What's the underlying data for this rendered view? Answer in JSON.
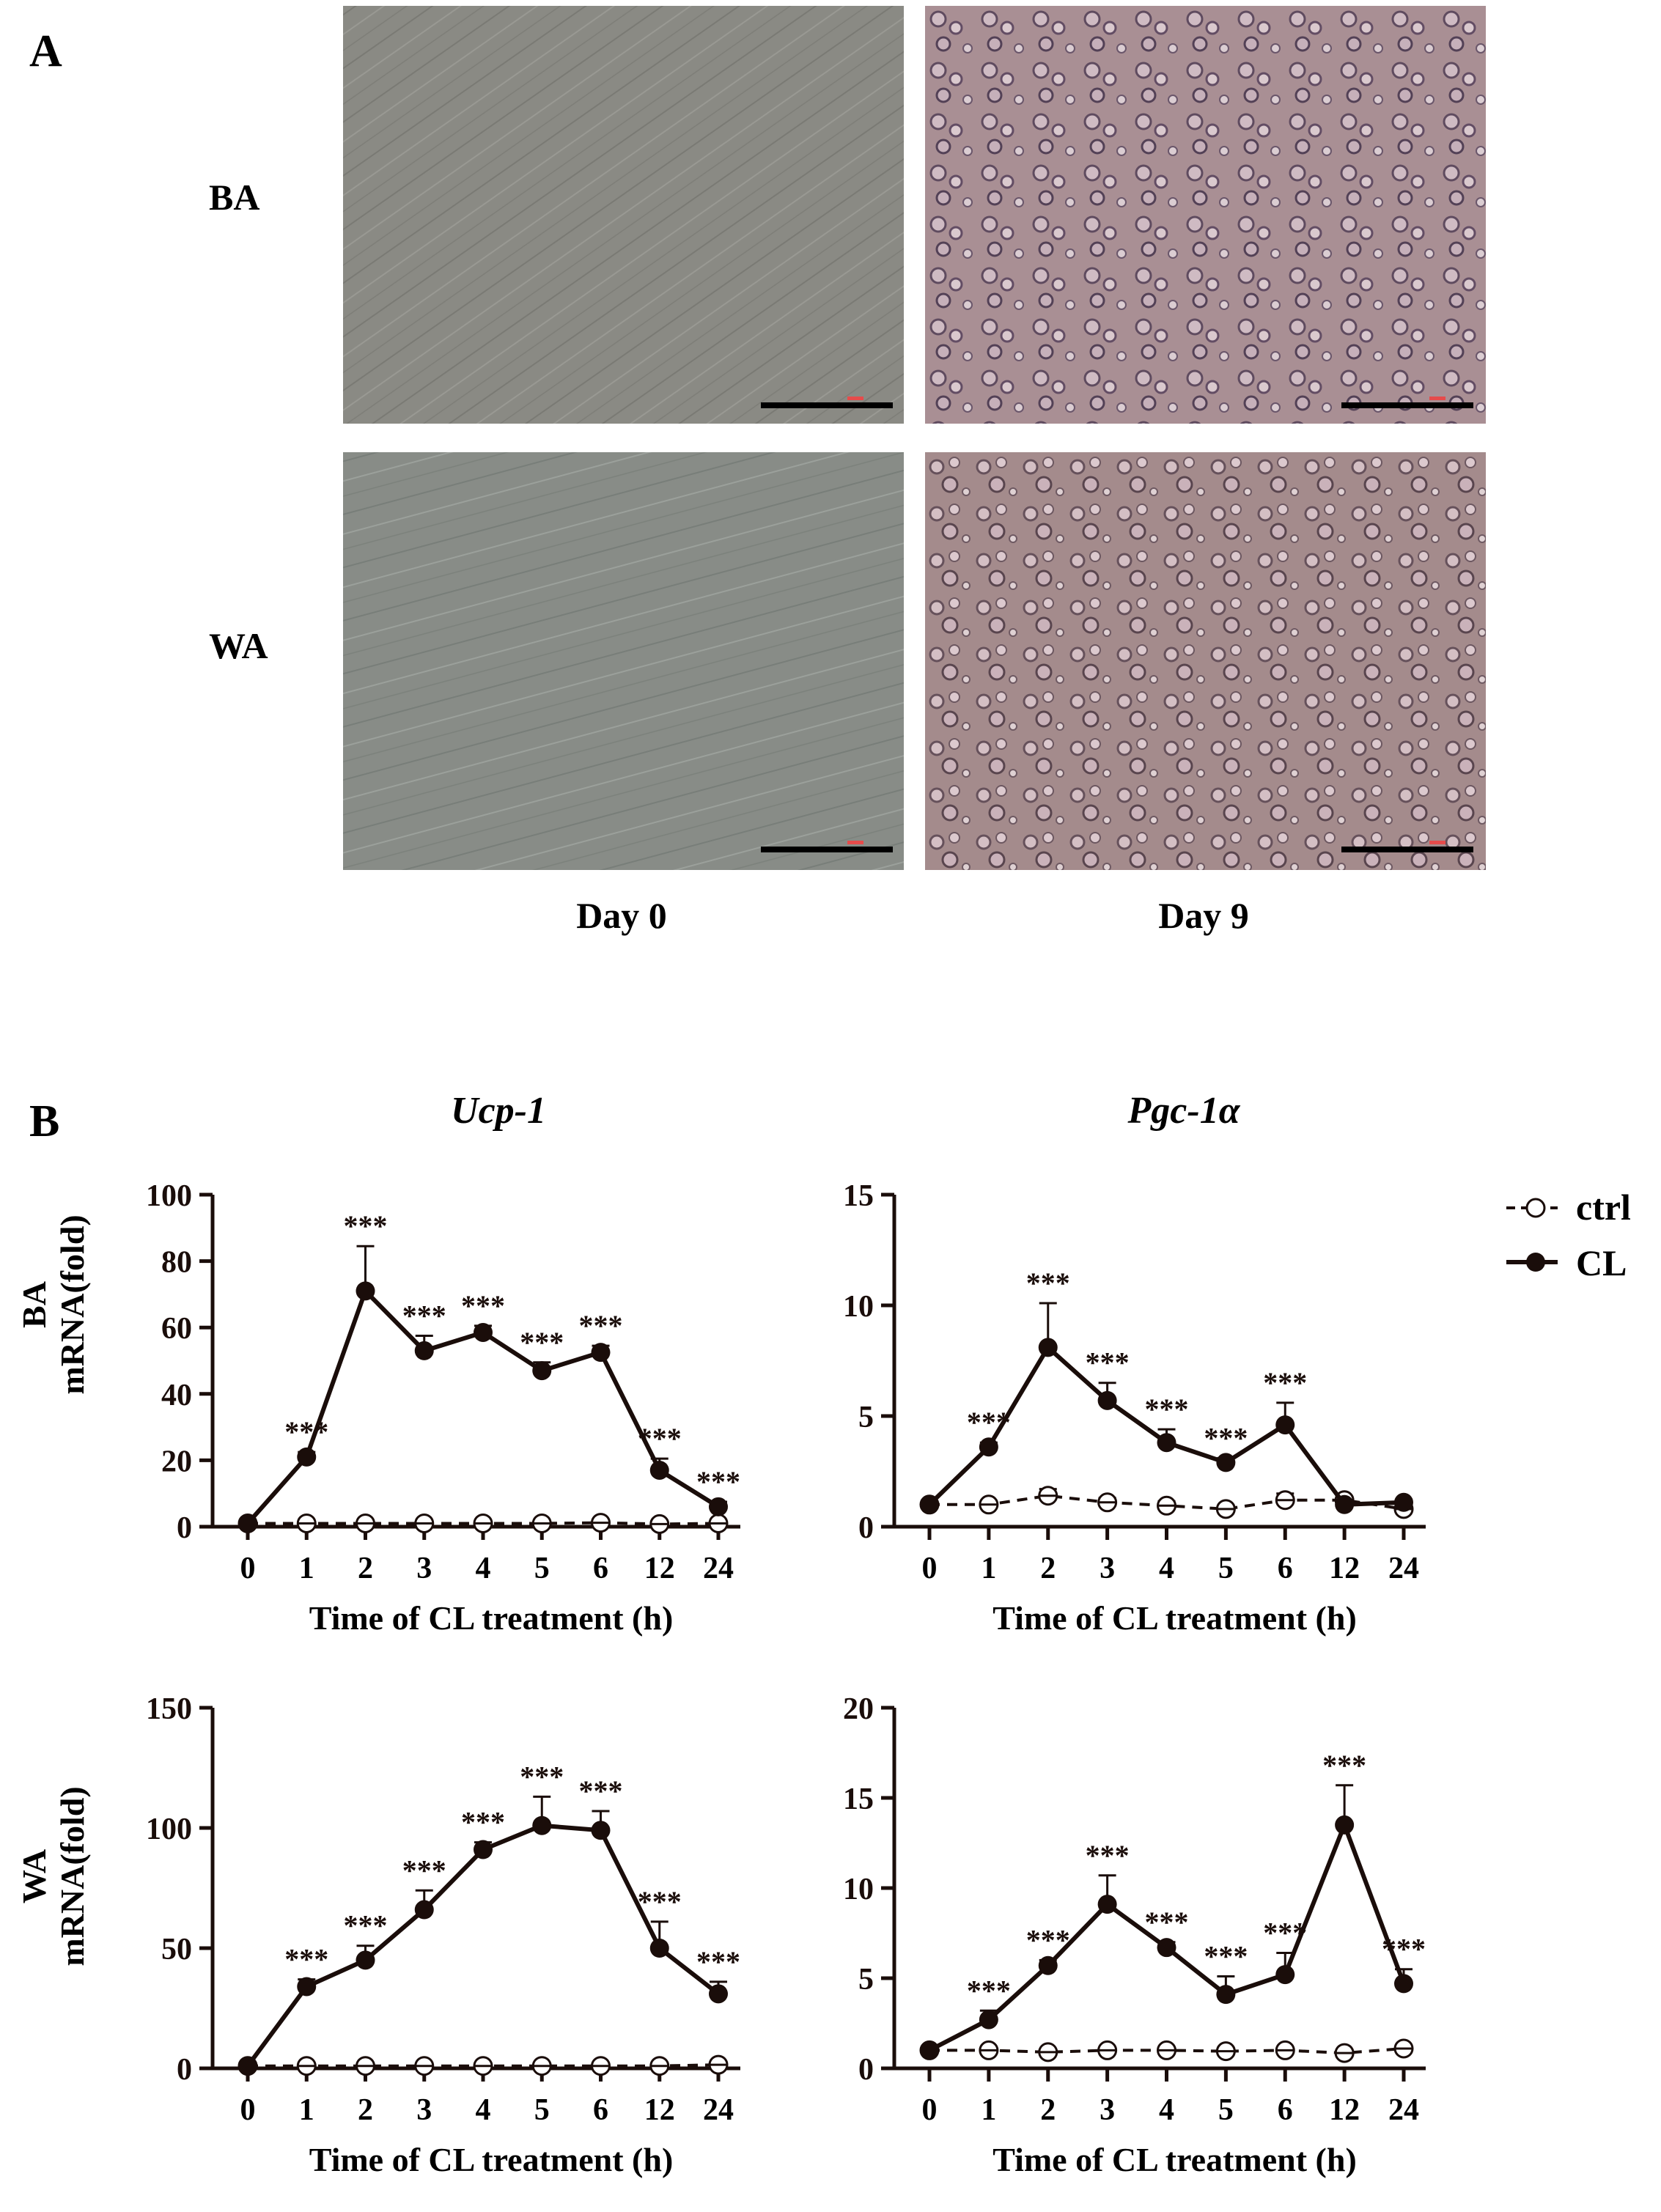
{
  "panelA": {
    "letter": "A",
    "rows": [
      "BA",
      "WA"
    ],
    "columns": [
      "Day 0",
      "Day 9"
    ]
  },
  "panelB": {
    "letter": "B",
    "genes": [
      "Ucp-1",
      "Pgc-1α"
    ],
    "row_labels": [
      "BA\nmRNA(fold)",
      "WA\nmRNA(fold)"
    ]
  },
  "legend": {
    "ctrl": "ctrl",
    "cl": "CL"
  },
  "colors": {
    "micro_day0": "#8a8a84",
    "micro_day9": "#a98f94",
    "line": "#1a0d0a",
    "axis": "#1a0d0a"
  },
  "chart_data": [
    {
      "type": "line",
      "title": "Ucp-1",
      "row": "BA",
      "categories": [
        "0",
        "1",
        "2",
        "3",
        "4",
        "5",
        "6",
        "12",
        "24"
      ],
      "xlabel": "Time of CL treatment (h)",
      "ylabel": "mRNA(fold)",
      "ylim": [
        0,
        100
      ],
      "yticks": [
        "0",
        "20",
        "40",
        "60",
        "80",
        "100"
      ],
      "series": [
        {
          "name": "ctrl",
          "values": [
            1,
            1,
            1,
            1,
            1,
            1,
            1.2,
            0.8,
            1
          ],
          "err": [
            0.5,
            0.5,
            0.5,
            0.5,
            0.5,
            0.5,
            0.5,
            0.5,
            0.5
          ]
        },
        {
          "name": "CL",
          "values": [
            1,
            21,
            71,
            53,
            58.5,
            47,
            52.5,
            17,
            6
          ],
          "err": [
            0.5,
            1.5,
            13.5,
            4.5,
            2,
            2.5,
            2,
            3.5,
            1.5
          ]
        }
      ],
      "annotations": [
        "",
        "***",
        "***",
        "***",
        "***",
        "***",
        "***",
        "***",
        "***"
      ]
    },
    {
      "type": "line",
      "title": "Pgc-1α",
      "row": "BA",
      "categories": [
        "0",
        "1",
        "2",
        "3",
        "4",
        "5",
        "6",
        "12",
        "24"
      ],
      "xlabel": "Time of CL treatment (h)",
      "ylabel": "mRNA(fold)",
      "ylim": [
        0,
        15
      ],
      "yticks": [
        "0",
        "5",
        "10",
        "15"
      ],
      "series": [
        {
          "name": "ctrl",
          "values": [
            1,
            1,
            1.4,
            1.1,
            0.95,
            0.8,
            1.2,
            1.2,
            0.8
          ],
          "err": [
            0.1,
            0.1,
            0.3,
            0.2,
            0.2,
            0.1,
            0.3,
            0.1,
            0.1
          ]
        },
        {
          "name": "CL",
          "values": [
            1,
            3.6,
            8.1,
            5.7,
            3.8,
            2.9,
            4.6,
            1,
            1.1
          ],
          "err": [
            0.1,
            0.2,
            2,
            0.8,
            0.6,
            0.2,
            1,
            0.1,
            0.1
          ]
        }
      ],
      "annotations": [
        "",
        "***",
        "***",
        "***",
        "***",
        "***",
        "***",
        "",
        ""
      ]
    },
    {
      "type": "line",
      "title": "Ucp-1",
      "row": "WA",
      "categories": [
        "0",
        "1",
        "2",
        "3",
        "4",
        "5",
        "6",
        "12",
        "24"
      ],
      "xlabel": "Time of CL treatment (h)",
      "ylabel": "mRNA(fold)",
      "ylim": [
        0,
        150
      ],
      "yticks": [
        "0",
        "50",
        "100",
        "150"
      ],
      "series": [
        {
          "name": "ctrl",
          "values": [
            1,
            1,
            1,
            1,
            1,
            1,
            1,
            1,
            1.5
          ],
          "err": [
            0.5,
            0.5,
            0.5,
            0.5,
            0.5,
            0.5,
            0.5,
            0.5,
            0.5
          ]
        },
        {
          "name": "CL",
          "values": [
            1,
            34,
            45,
            66,
            91,
            101,
            99,
            50,
            31
          ],
          "err": [
            0.5,
            3,
            6,
            8,
            3,
            12,
            8,
            11,
            5
          ]
        }
      ],
      "annotations": [
        "",
        "***",
        "***",
        "***",
        "***",
        "***",
        "***",
        "***",
        "***"
      ]
    },
    {
      "type": "line",
      "title": "Pgc-1α",
      "row": "WA",
      "categories": [
        "0",
        "1",
        "2",
        "3",
        "4",
        "5",
        "6",
        "12",
        "24"
      ],
      "xlabel": "Time of CL treatment (h)",
      "ylabel": "mRNA(fold)",
      "ylim": [
        0,
        20
      ],
      "yticks": [
        "0",
        "5",
        "10",
        "15",
        "20"
      ],
      "series": [
        {
          "name": "ctrl",
          "values": [
            1,
            1,
            0.9,
            1,
            1,
            0.95,
            1,
            0.85,
            1.1
          ],
          "err": [
            0.1,
            0.1,
            0.1,
            0.1,
            0.1,
            0.2,
            0.1,
            0.1,
            0.1
          ]
        },
        {
          "name": "CL",
          "values": [
            1,
            2.7,
            5.7,
            9.1,
            6.7,
            4.1,
            5.2,
            13.5,
            4.7
          ],
          "err": [
            0.1,
            0.5,
            0.3,
            1.6,
            0.3,
            1,
            1.2,
            2.2,
            0.8
          ]
        }
      ],
      "annotations": [
        "",
        "***",
        "***",
        "***",
        "***",
        "***",
        "***",
        "***",
        "***"
      ]
    }
  ]
}
